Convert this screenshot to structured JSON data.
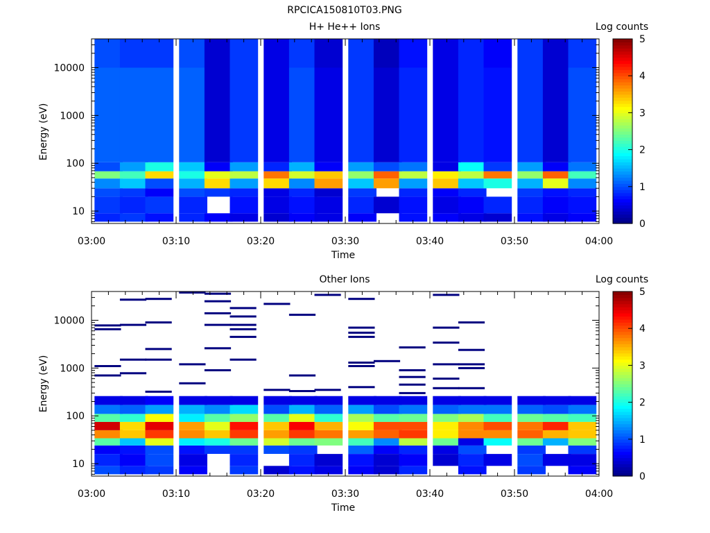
{
  "figure_title": "RPCICA150810T03.PNG",
  "colormap": [
    "#00007f",
    "#0000ff",
    "#007fff",
    "#00ffff",
    "#7fff7f",
    "#ffff00",
    "#ff7f00",
    "#ff0000",
    "#7f0000"
  ],
  "chart_data": [
    {
      "type": "heatmap",
      "title": "H+ He++ Ions",
      "xlabel": "Time",
      "ylabel": "Energy (eV)",
      "x_ticks": [
        "03:00",
        "03:10",
        "03:20",
        "03:30",
        "03:40",
        "03:50",
        "04:00"
      ],
      "xlim": [
        "03:00",
        "04:00"
      ],
      "y_scale": "log",
      "y_ticks": [
        "10",
        "100",
        "1000",
        "10000"
      ],
      "ylim": [
        5.5,
        40000
      ],
      "colorbar": {
        "label": "Log counts",
        "range": [
          0,
          5
        ],
        "ticks": [
          "0",
          "1",
          "2",
          "3",
          "4",
          "5"
        ]
      },
      "time_bins": [
        "03:02",
        "03:05",
        "03:08",
        "03:12",
        "03:15",
        "03:18",
        "03:22",
        "03:25",
        "03:28",
        "03:32",
        "03:35",
        "03:38",
        "03:42",
        "03:45",
        "03:48",
        "03:52",
        "03:55",
        "03:58"
      ],
      "energy_bands": [
        {
          "energy_range": [
            6,
            9
          ],
          "values": [
            0.8,
            0.9,
            0.7,
            0.8,
            0.6,
            0.5,
            0.4,
            0.6,
            0.5,
            0.6,
            null,
            0.7,
            0.6,
            0.5,
            0.4,
            0.7,
            0.5,
            0.6
          ]
        },
        {
          "energy_range": [
            9,
            20
          ],
          "values": [
            0.9,
            0.8,
            0.9,
            0.8,
            null,
            0.7,
            0.5,
            0.7,
            0.5,
            0.8,
            0.4,
            0.7,
            0.5,
            0.6,
            0.8,
            0.8,
            0.6,
            0.7
          ]
        },
        {
          "energy_range": [
            20,
            30
          ],
          "values": [
            1.0,
            0.9,
            0.6,
            1.0,
            0.9,
            0.8,
            0.5,
            0.8,
            0.4,
            0.9,
            null,
            0.8,
            0.6,
            0.8,
            null,
            0.9,
            0.7,
            0.8
          ]
        },
        {
          "energy_range": [
            30,
            48
          ],
          "values": [
            1.3,
            1.6,
            1.0,
            1.5,
            3.3,
            1.4,
            3.3,
            1.3,
            3.6,
            1.6,
            3.6,
            1.4,
            3.4,
            1.6,
            2.0,
            1.5,
            3.0,
            1.3
          ]
        },
        {
          "energy_range": [
            48,
            68
          ],
          "values": [
            2.5,
            2.2,
            3.3,
            2.0,
            3.0,
            2.8,
            3.8,
            2.9,
            3.4,
            2.6,
            3.9,
            2.8,
            3.2,
            2.8,
            3.8,
            2.6,
            3.9,
            2.2
          ]
        },
        {
          "energy_range": [
            68,
            105
          ],
          "values": [
            1.0,
            1.4,
            2.0,
            1.6,
            0.6,
            1.4,
            0.8,
            1.5,
            0.6,
            1.4,
            1.0,
            1.2,
            0.5,
            1.9,
            0.9,
            1.4,
            0.6,
            1.2
          ]
        },
        {
          "energy_range": [
            105,
            10000
          ],
          "values": [
            1.1,
            1.1,
            1.1,
            1.1,
            0.4,
            0.9,
            0.5,
            1.0,
            0.5,
            0.9,
            0.4,
            0.8,
            0.5,
            0.8,
            0.7,
            0.9,
            0.4,
            1.0
          ]
        },
        {
          "energy_range": [
            10000,
            40000
          ],
          "values": [
            1.0,
            0.9,
            0.9,
            1.0,
            0.4,
            0.9,
            0.5,
            0.9,
            0.4,
            0.9,
            0.3,
            0.7,
            0.5,
            0.8,
            0.6,
            0.9,
            0.4,
            0.9
          ]
        }
      ]
    },
    {
      "type": "heatmap",
      "title": "Other Ions",
      "xlabel": "Time",
      "ylabel": "Energy (eV)",
      "x_ticks": [
        "03:00",
        "03:10",
        "03:20",
        "03:30",
        "03:40",
        "03:50",
        "04:00"
      ],
      "xlim": [
        "03:00",
        "04:00"
      ],
      "y_scale": "log",
      "y_ticks": [
        "10",
        "100",
        "1000",
        "10000"
      ],
      "ylim": [
        5.5,
        40000
      ],
      "colorbar": {
        "label": "Log counts",
        "range": [
          0,
          5
        ],
        "ticks": [
          "0",
          "1",
          "2",
          "3",
          "4",
          "5"
        ]
      },
      "time_bins": [
        "03:02",
        "03:05",
        "03:08",
        "03:12",
        "03:15",
        "03:18",
        "03:22",
        "03:25",
        "03:28",
        "03:32",
        "03:35",
        "03:38",
        "03:42",
        "03:45",
        "03:48",
        "03:52",
        "03:55",
        "03:58"
      ],
      "energy_bands": [
        {
          "energy_range": [
            6,
            9
          ],
          "values": [
            1.0,
            0.8,
            0.9,
            0.6,
            null,
            0.9,
            0.4,
            0.7,
            0.5,
            0.6,
            0.4,
            0.8,
            null,
            0.7,
            null,
            0.9,
            null,
            0.6
          ]
        },
        {
          "energy_range": [
            9,
            16
          ],
          "values": [
            0.8,
            0.6,
            1.0,
            0.5,
            null,
            0.8,
            null,
            0.8,
            0.4,
            0.7,
            0.4,
            0.6,
            0.4,
            0.8,
            0.5,
            1.0,
            0.5,
            0.5
          ]
        },
        {
          "energy_range": [
            16,
            24
          ],
          "values": [
            0.6,
            0.7,
            1.0,
            0.7,
            0.9,
            0.9,
            1.0,
            0.9,
            null,
            1.1,
            0.6,
            0.8,
            0.5,
            1.0,
            null,
            0.9,
            null,
            0.9
          ]
        },
        {
          "energy_range": [
            24,
            34
          ],
          "values": [
            2.3,
            1.6,
            3.0,
            1.8,
            2.0,
            2.4,
            2.9,
            2.4,
            2.5,
            2.2,
            1.3,
            2.8,
            2.4,
            0.5,
            1.9,
            2.4,
            1.5,
            2.5
          ]
        },
        {
          "energy_range": [
            34,
            50
          ],
          "values": [
            3.7,
            3.4,
            4.1,
            3.7,
            3.4,
            4.1,
            3.6,
            4.1,
            3.8,
            3.6,
            3.9,
            4.1,
            3.2,
            3.7,
            3.7,
            3.9,
            3.5,
            3.4
          ]
        },
        {
          "energy_range": [
            50,
            75
          ],
          "values": [
            4.6,
            3.3,
            4.5,
            3.6,
            3.0,
            4.3,
            3.4,
            4.4,
            3.5,
            3.1,
            4.0,
            4.0,
            3.2,
            3.7,
            4.0,
            3.8,
            4.2,
            3.4
          ]
        },
        {
          "energy_range": [
            75,
            110
          ],
          "values": [
            2.3,
            2.1,
            3.1,
            1.8,
            2.3,
            2.6,
            2.3,
            3.0,
            2.1,
            2.7,
            2.3,
            2.4,
            2.5,
            2.7,
            2.2,
            2.4,
            2.3,
            2.2
          ]
        },
        {
          "energy_range": [
            110,
            170
          ],
          "values": [
            1.2,
            1.1,
            1.4,
            1.5,
            1.3,
            1.7,
            1.0,
            1.5,
            1.1,
            1.4,
            1.0,
            1.2,
            1.1,
            1.2,
            1.2,
            1.1,
            1.0,
            1.2
          ]
        },
        {
          "energy_range": [
            170,
            260
          ],
          "values": [
            0.5,
            0.5,
            0.6,
            0.5,
            0.5,
            0.5,
            0.5,
            0.5,
            0.5,
            0.5,
            0.5,
            0.5,
            0.5,
            0.5,
            0.5,
            0.5,
            0.5,
            0.5
          ]
        }
      ],
      "sparse_hits_energy_ev": [
        [
          7800,
          6500,
          1100,
          700
        ],
        [
          27000,
          8000,
          1500,
          780
        ],
        [
          28000,
          9000,
          2500,
          1500,
          320
        ],
        [
          38000,
          1200,
          480
        ],
        [
          36000,
          25000,
          14000,
          8000,
          2600,
          900
        ],
        [
          18000,
          12000,
          8000,
          6500,
          4500,
          1500
        ],
        [
          22000,
          350
        ],
        [
          13000,
          700,
          330
        ],
        [
          34000,
          350
        ],
        [
          28000,
          7000,
          5500,
          4500,
          1300,
          1100,
          400
        ],
        [
          1400
        ],
        [
          2700,
          900,
          650,
          450,
          300
        ],
        [
          34000,
          7000,
          3400,
          1200,
          600,
          380
        ],
        [
          9000,
          2400,
          1200,
          1000,
          380
        ]
      ]
    }
  ]
}
